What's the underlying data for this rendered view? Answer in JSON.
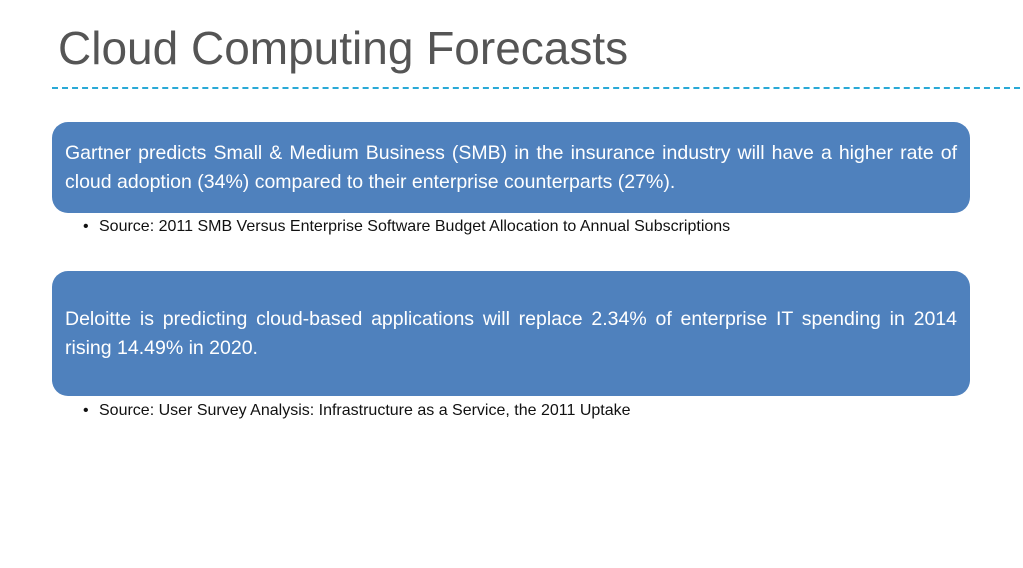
{
  "slide": {
    "title": "Cloud Computing Forecasts",
    "items": [
      {
        "box_text": "Gartner predicts Small & Medium Business (SMB) in the insurance industry will have a higher rate of cloud adoption (34%) compared to their enterprise counterparts (27%).",
        "bullet": "•",
        "source": "Source: 2011 SMB Versus Enterprise Software Budget Allocation to Annual Subscriptions"
      },
      {
        "box_text": "Deloitte is predicting cloud-based applications will replace 2.34% of enterprise IT spending in 2014 rising 14.49% in 2020.",
        "bullet": "•",
        "source": "Source: User Survey Analysis: Infrastructure as a Service, the 2011 Uptake"
      }
    ]
  },
  "colors": {
    "box_fill": "#4f81bd",
    "divider": "#29a9d6",
    "title_text": "#555555"
  }
}
